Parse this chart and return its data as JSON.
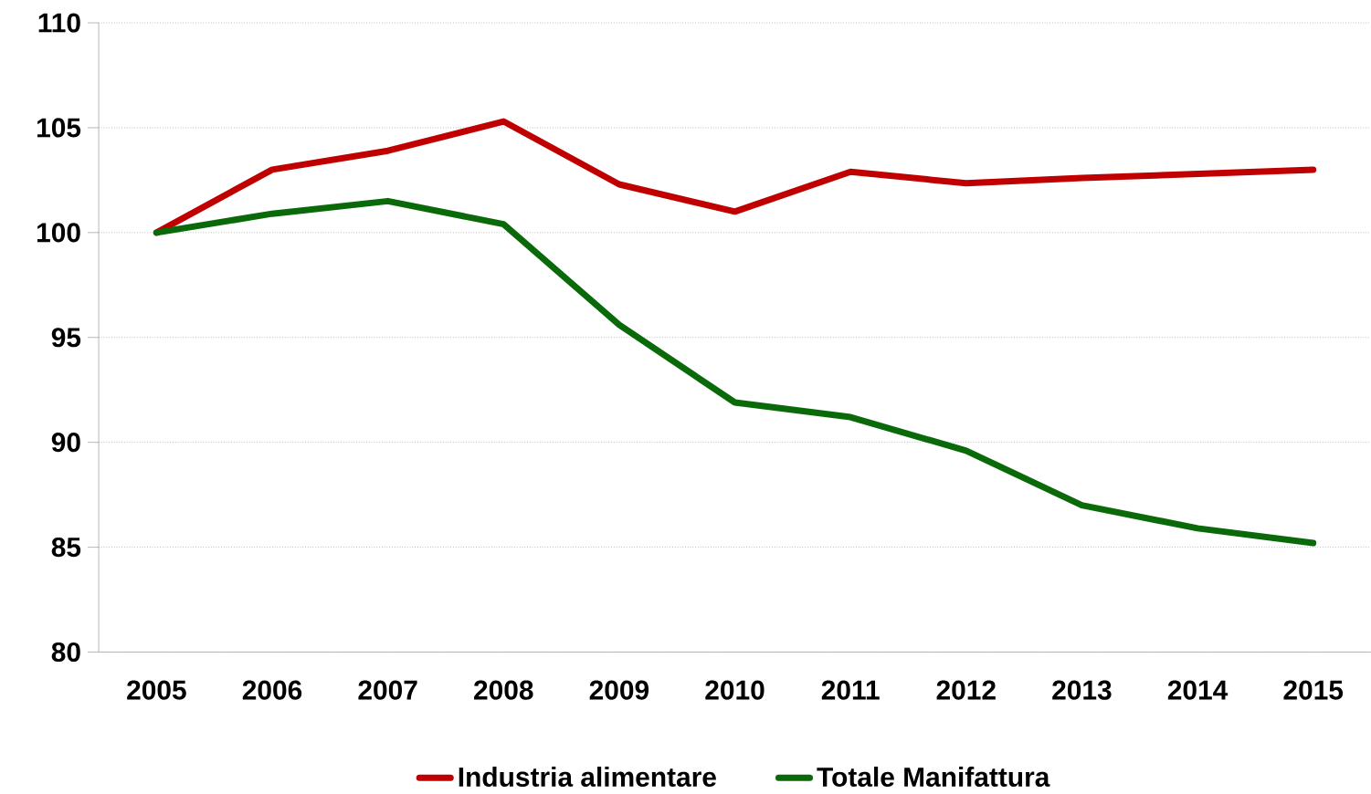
{
  "chart_data": {
    "type": "line",
    "categories": [
      "2005",
      "2006",
      "2007",
      "2008",
      "2009",
      "2010",
      "2011",
      "2012",
      "2013",
      "2014",
      "2015"
    ],
    "series": [
      {
        "name": "Industria alimentare",
        "color": "#c00000",
        "values": [
          100,
          103.0,
          103.9,
          105.3,
          102.3,
          101.0,
          102.9,
          102.35,
          102.6,
          102.8,
          103.0
        ]
      },
      {
        "name": "Totale Manifattura",
        "color": "#0a6a0a",
        "values": [
          100,
          100.9,
          101.5,
          100.4,
          95.6,
          91.9,
          91.2,
          89.6,
          87.0,
          85.9,
          85.2
        ]
      }
    ],
    "ylim": [
      80,
      110
    ],
    "yticks": [
      80,
      85,
      90,
      95,
      100,
      105,
      110
    ],
    "grid": "y",
    "legend": "bottom",
    "marker": "none",
    "line_style": "solid"
  }
}
